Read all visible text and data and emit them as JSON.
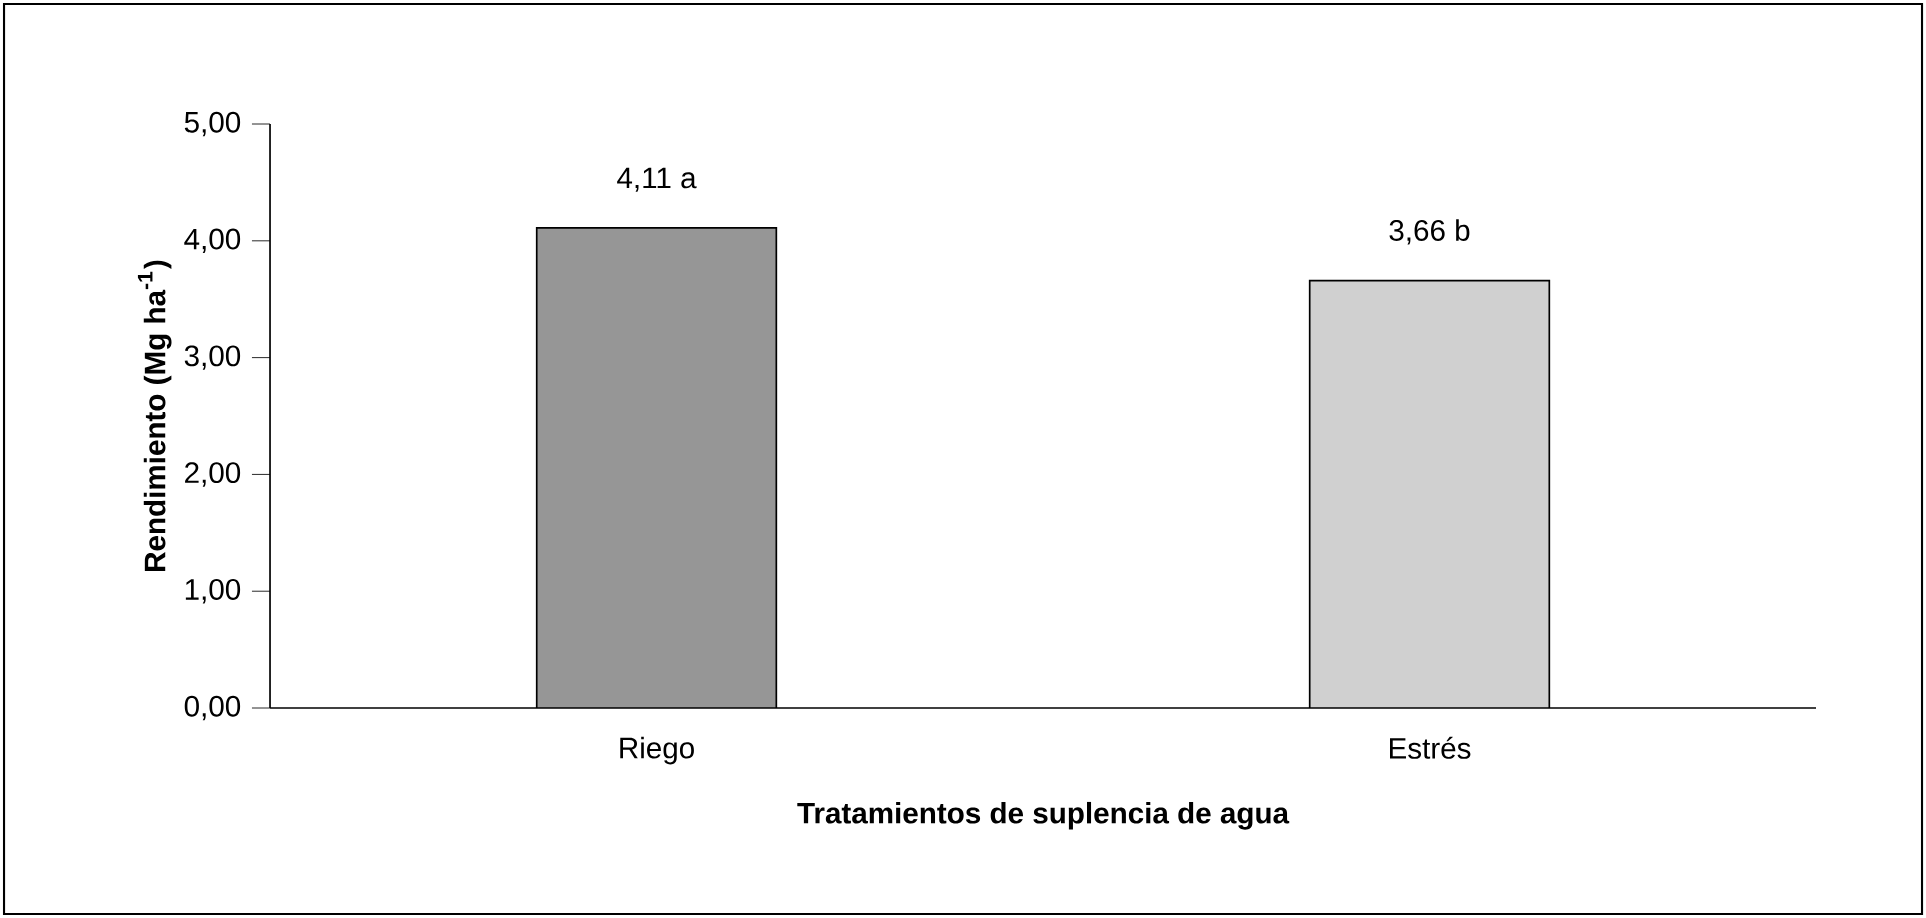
{
  "chart_data": {
    "type": "bar",
    "xlabel": "Tratamientos de suplencia de agua",
    "ylabel": "Rendimiento (Mg ha$^{-1}$)",
    "categories": [
      "Riego",
      "Estrés"
    ],
    "values": [
      4.11,
      3.66
    ],
    "colors": [
      "#969696",
      "#d0d0d0"
    ],
    "value_labels": [
      "4,11 a",
      "3,66 b"
    ],
    "ylim": [
      0,
      5
    ],
    "yticks": [
      {
        "value": 0,
        "label": "0,00"
      },
      {
        "value": 1,
        "label": "1,00"
      },
      {
        "value": 2,
        "label": "2,00"
      },
      {
        "value": 3,
        "label": "3,00"
      },
      {
        "value": 4,
        "label": "4,00"
      },
      {
        "value": 5,
        "label": "5,00"
      }
    ],
    "grid": false
  }
}
